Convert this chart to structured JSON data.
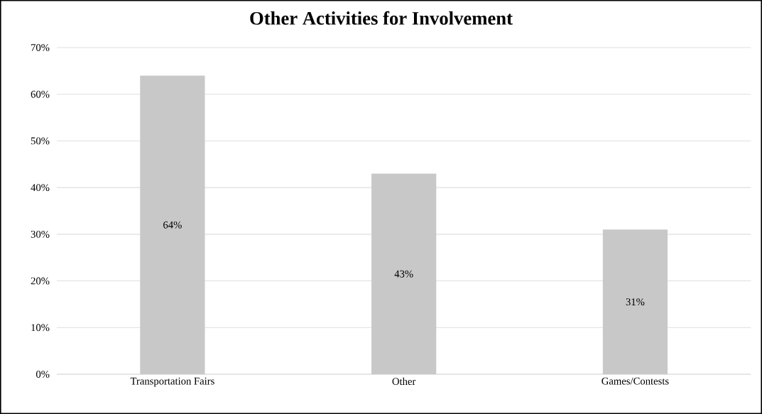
{
  "chart_data": {
    "type": "bar",
    "title": "Other Activities for Involvement",
    "categories": [
      "Transportation Fairs",
      "Other",
      "Games/Contests"
    ],
    "values": [
      64,
      43,
      31
    ],
    "value_labels": [
      "64%",
      "43%",
      "31%"
    ],
    "color": "#c8c8c8",
    "ylim": [
      0,
      70
    ],
    "yticks": [
      {
        "value": 0,
        "label": "0%"
      },
      {
        "value": 10,
        "label": "10%"
      },
      {
        "value": 20,
        "label": "20%"
      },
      {
        "value": 30,
        "label": "30%"
      },
      {
        "value": 40,
        "label": "40%"
      },
      {
        "value": 50,
        "label": "50%"
      },
      {
        "value": 60,
        "label": "60%"
      },
      {
        "value": 70,
        "label": "70%"
      }
    ],
    "grid": "y"
  }
}
